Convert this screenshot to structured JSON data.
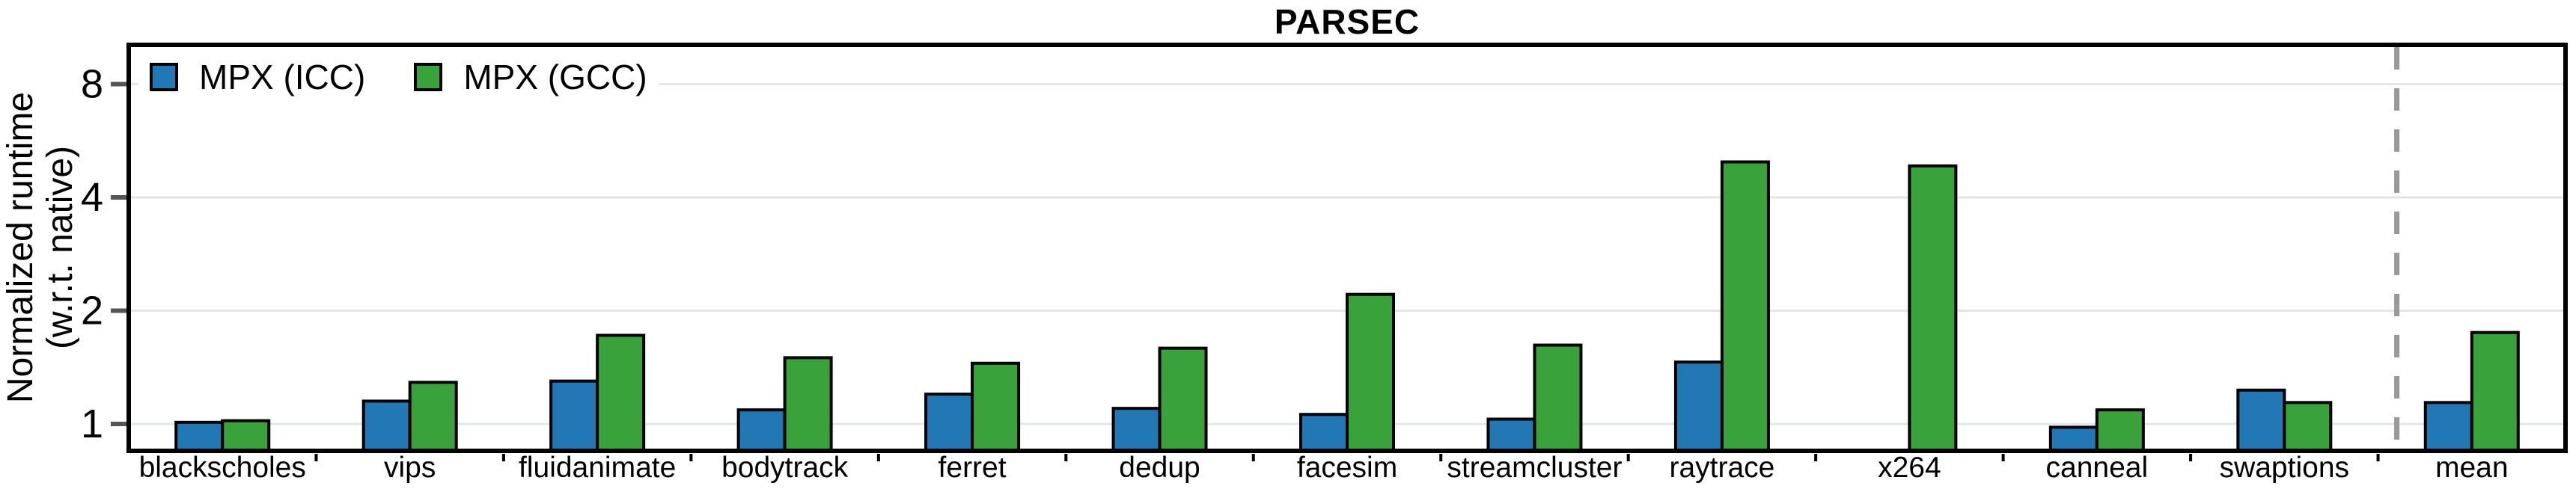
{
  "chart": {
    "title": "PARSEC",
    "ylabel_line1": "Normalized runtime",
    "ylabel_line2": "(w.r.t. native)"
  },
  "chart_data": {
    "type": "bar",
    "title": "PARSEC",
    "ylabel": "Normalized runtime (w.r.t. native)",
    "y_scale": "log2",
    "yticks": [
      1,
      2,
      4,
      8
    ],
    "ylim": [
      0.85,
      10.2
    ],
    "grid": true,
    "legend_position": "top-left",
    "separator": "dashed vertical line between swaptions and mean",
    "categories": [
      "blackscholes",
      "vips",
      "fluidanimate",
      "bodytrack",
      "ferret",
      "dedup",
      "facesim",
      "streamcluster",
      "raytrace",
      "x264",
      "canneal",
      "swaptions",
      "mean"
    ],
    "series": [
      {
        "name": "MPX (ICC)",
        "color": "#2278b5",
        "values": [
          1.01,
          1.15,
          1.3,
          1.09,
          1.2,
          1.1,
          1.06,
          1.03,
          1.46,
          null,
          0.98,
          1.23,
          1.14
        ]
      },
      {
        "name": "MPX (GCC)",
        "color": "#3aa23a",
        "values": [
          1.02,
          1.29,
          1.72,
          1.5,
          1.45,
          1.59,
          2.21,
          1.62,
          4.97,
          4.85,
          1.09,
          1.14,
          1.75
        ]
      }
    ]
  },
  "colors": {
    "bar_edge": "#000000",
    "grid": "#e3e6e6",
    "tick": "#555555",
    "separator": "#999999",
    "frame": "#000000"
  }
}
